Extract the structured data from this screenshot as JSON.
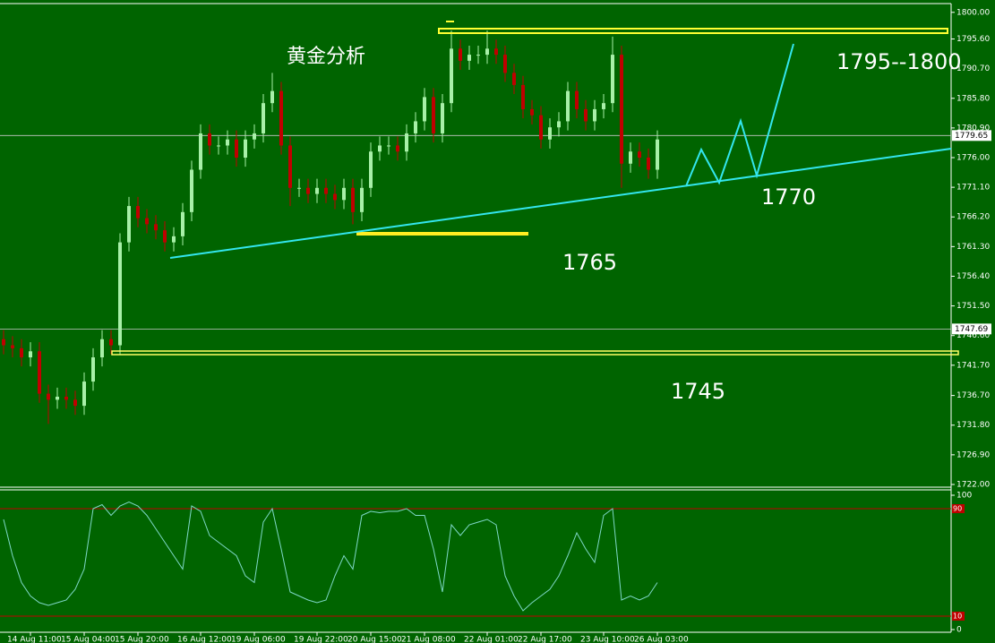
{
  "chart_data": [
    {
      "type": "candlestick",
      "title": "黄金分析",
      "annotations": [
        "1795--1800",
        "1770",
        "1765",
        "1745"
      ],
      "categories": [
        null,
        null,
        null,
        "14 Aug 11:00",
        null,
        null,
        null,
        null,
        null,
        "15 Aug 04:00",
        null,
        null,
        null,
        null,
        null,
        "15 Aug 20:00",
        null,
        null,
        null,
        null,
        null,
        null,
        "16 Aug 12:00",
        null,
        null,
        null,
        null,
        null,
        "19 Aug 06:00",
        null,
        null,
        null,
        null,
        null,
        null,
        "19 Aug 22:00",
        null,
        null,
        null,
        null,
        null,
        "20 Aug 15:00",
        null,
        null,
        null,
        null,
        null,
        "21 Aug 08:00",
        null,
        null,
        null,
        null,
        null,
        null,
        "22 Aug 01:00",
        null,
        null,
        null,
        null,
        null,
        "22 Aug 17:00",
        null,
        null,
        null,
        null,
        null,
        null,
        "23 Aug 10:00",
        null,
        null,
        null,
        null,
        null,
        "26 Aug 03:00"
      ],
      "open": [
        1746,
        1745,
        1744.5,
        1743,
        1744,
        1737,
        1736,
        1736.5,
        1736,
        1735,
        1739,
        1743,
        1746,
        1745,
        1762,
        1768,
        1766,
        1765,
        1764,
        1762,
        1763,
        1767,
        1774,
        1780,
        1778,
        1778,
        1779,
        1776,
        1779,
        1780,
        1785,
        1787,
        1778,
        1771,
        1771,
        1770,
        1771,
        1770,
        1769,
        1771,
        1767,
        1771,
        1777,
        1778,
        1778,
        1777,
        1780,
        1782,
        1786,
        1780,
        1785,
        1794,
        1792,
        1793,
        1793,
        1794,
        1793,
        1790,
        1788,
        1784,
        1783,
        1779,
        1781,
        1782,
        1787,
        1784,
        1782,
        1784,
        1785,
        1793,
        1775,
        1777,
        1776,
        1774
      ],
      "high": [
        1747.5,
        1746.5,
        1746,
        1745.5,
        1745.5,
        1738.5,
        1738,
        1738,
        1737.5,
        1740.5,
        1744.5,
        1747.5,
        1747.5,
        1763.5,
        1769.5,
        1769.5,
        1767.5,
        1766.5,
        1765.5,
        1764.5,
        1768.5,
        1775.5,
        1781.5,
        1781.5,
        1779.5,
        1780.5,
        1780.5,
        1780.5,
        1781.5,
        1786.5,
        1790,
        1788.5,
        1779.5,
        1772.5,
        1772.5,
        1772.5,
        1772.5,
        1771.5,
        1772.5,
        1772.5,
        1772.5,
        1778.5,
        1779.5,
        1779.5,
        1779.5,
        1781.5,
        1783.5,
        1787.5,
        1787.5,
        1786.5,
        1797,
        1795.5,
        1794.5,
        1794.5,
        1797,
        1795.5,
        1794.5,
        1791.5,
        1789.5,
        1785.5,
        1784.5,
        1782.5,
        1783.5,
        1788.5,
        1788.5,
        1785.5,
        1785.5,
        1786.5,
        1796,
        1794.5,
        1778.5,
        1778.5,
        1777.5,
        1780.5
      ],
      "low": [
        1743.5,
        1743,
        1741.5,
        1741.5,
        1735.5,
        1732,
        1734.5,
        1734.5,
        1733.5,
        1733.5,
        1737.5,
        1741.5,
        1743.5,
        1743.5,
        1760.5,
        1764.5,
        1763.5,
        1762.5,
        1760.5,
        1760.5,
        1761.5,
        1765.5,
        1772.5,
        1776.5,
        1776.5,
        1776.5,
        1774.5,
        1774.5,
        1777.5,
        1778.5,
        1783.5,
        1776.5,
        1768,
        1769.5,
        1768.5,
        1768.5,
        1768.5,
        1767.5,
        1767.5,
        1765,
        1765.5,
        1769.5,
        1775.5,
        1776.5,
        1775.5,
        1775.5,
        1778.5,
        1780.5,
        1778.5,
        1778.5,
        1783.5,
        1790.5,
        1790.5,
        1791.5,
        1791.5,
        1791.5,
        1788.5,
        1786.5,
        1782.5,
        1781.5,
        1777.5,
        1777.5,
        1779.5,
        1780.5,
        1782.5,
        1780.5,
        1780.5,
        1782.5,
        1783.5,
        1771,
        1773.5,
        1774.5,
        1772.5,
        1772.5
      ],
      "close": [
        1745,
        1744.5,
        1743,
        1744,
        1737,
        1736,
        1736.5,
        1736,
        1735,
        1739,
        1743,
        1746,
        1745,
        1762,
        1768,
        1766,
        1765,
        1764,
        1762,
        1763,
        1767,
        1774,
        1780,
        1778,
        1778,
        1779,
        1776,
        1779,
        1780,
        1785,
        1787,
        1778,
        1771,
        1771,
        1770,
        1771,
        1770,
        1769,
        1771,
        1767,
        1771,
        1777,
        1778,
        1778,
        1777,
        1780,
        1782,
        1786,
        1780,
        1785,
        1794,
        1792,
        1793,
        1793,
        1794,
        1793,
        1790,
        1788,
        1784,
        1783,
        1779,
        1781,
        1782,
        1787,
        1784,
        1782,
        1784,
        1785,
        1793,
        1775,
        1777,
        1776,
        1774,
        1779
      ],
      "up_color": "#a8f0a8",
      "down_color": "#c00000",
      "price_lines": [
        1779.65,
        1747.69
      ],
      "ylim": [
        1721.7,
        1801.3
      ],
      "yticks": [
        {
          "value": 1800,
          "label": "1800.00"
        },
        {
          "value": 1795.6,
          "label": "1795.60"
        },
        {
          "value": 1790.7,
          "label": "1790.70"
        },
        {
          "value": 1785.8,
          "label": "1785.80"
        },
        {
          "value": 1780.9,
          "label": "1780.90"
        },
        {
          "value": 1776,
          "label": "1776.00"
        },
        {
          "value": 1771.1,
          "label": "1771.10"
        },
        {
          "value": 1766.2,
          "label": "1766.20"
        },
        {
          "value": 1761.3,
          "label": "1761.30"
        },
        {
          "value": 1756.4,
          "label": "1756.40"
        },
        {
          "value": 1751.5,
          "label": "1751.50"
        },
        {
          "value": 1746.6,
          "label": "1746.60"
        },
        {
          "value": 1741.7,
          "label": "1741.70"
        },
        {
          "value": 1736.7,
          "label": "1736.70"
        },
        {
          "value": 1731.8,
          "label": "1731.80"
        },
        {
          "value": 1726.9,
          "label": "1726.90"
        },
        {
          "value": 1722,
          "label": "1722.00"
        }
      ]
    },
    {
      "type": "line",
      "values": [
        82,
        55,
        35,
        25,
        20,
        18,
        20,
        22,
        30,
        45,
        90,
        93,
        85,
        92,
        95,
        92,
        85,
        75,
        65,
        55,
        45,
        92,
        88,
        70,
        65,
        60,
        55,
        40,
        35,
        80,
        90,
        60,
        28,
        25,
        22,
        20,
        22,
        40,
        55,
        45,
        85,
        88,
        87,
        88,
        88,
        90,
        85,
        85,
        60,
        28,
        78,
        70,
        78,
        80,
        82,
        78,
        40,
        25,
        14,
        20,
        25,
        30,
        40,
        55,
        72,
        60,
        50,
        85,
        90,
        22,
        25,
        22,
        25,
        35
      ],
      "color": "#7fd8c8",
      "ylim": [
        0,
        100
      ],
      "yticks": [
        100,
        0
      ],
      "levels": [
        90,
        10
      ],
      "level_color": "#c00000"
    }
  ]
}
